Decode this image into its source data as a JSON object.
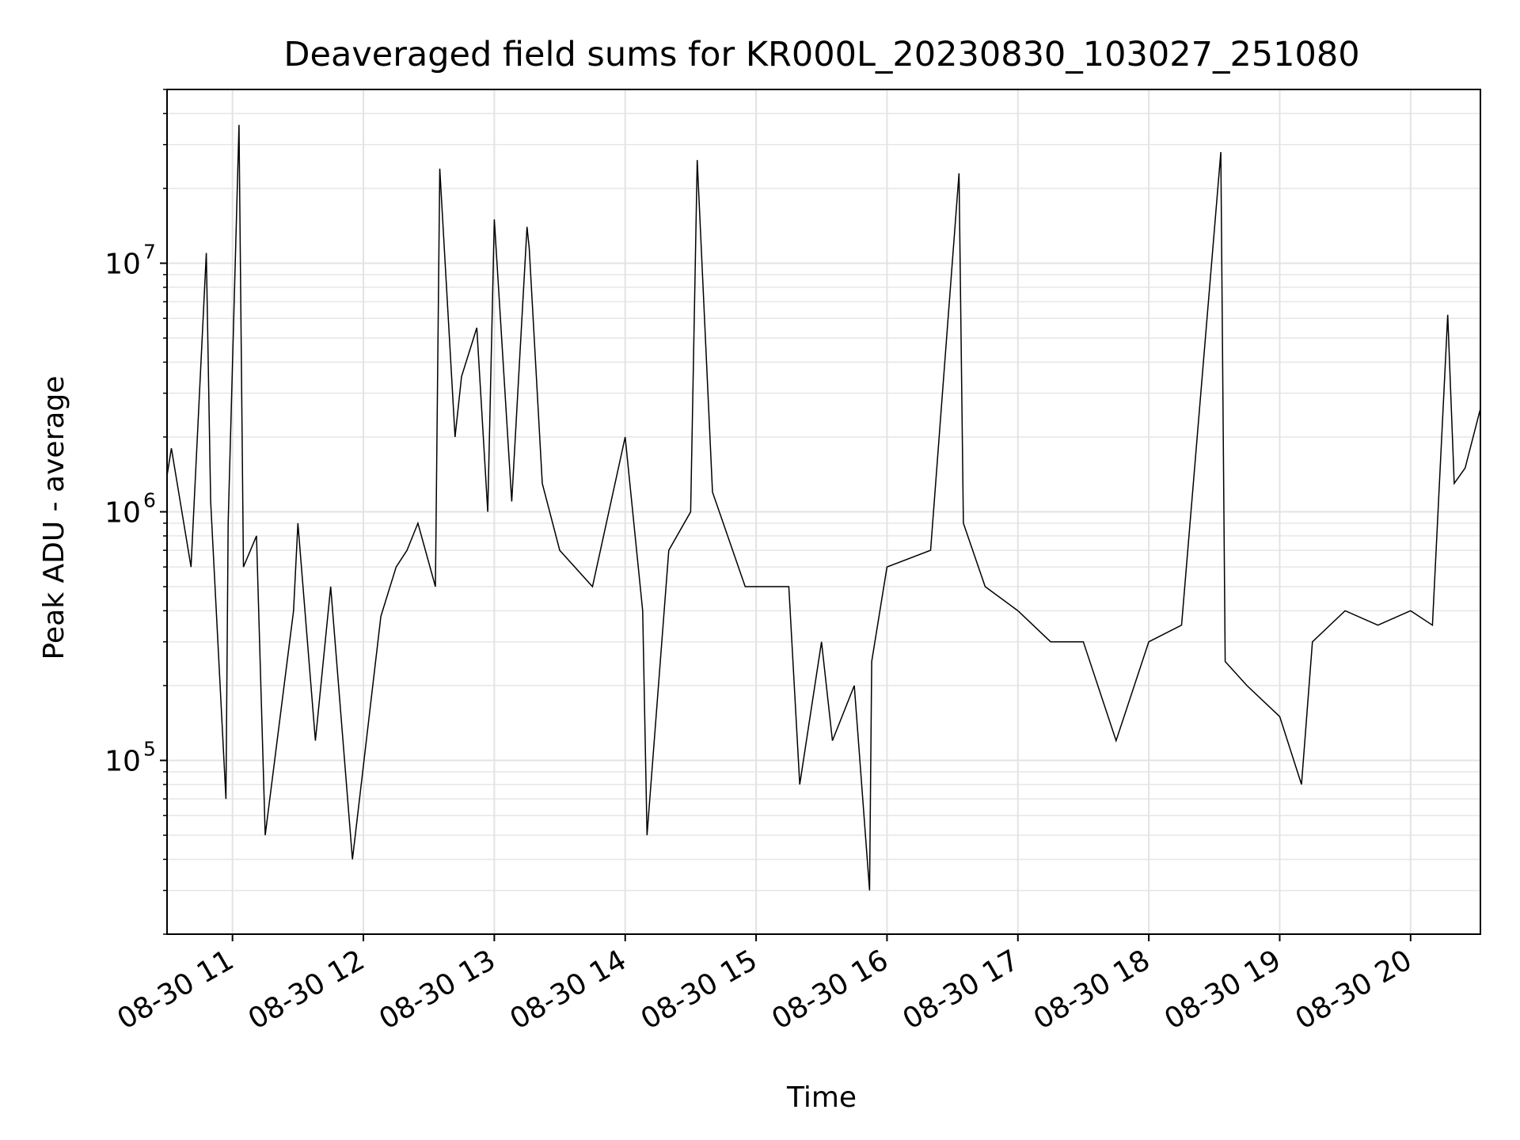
{
  "chart_data": {
    "type": "line",
    "title": "Deaveraged field sums for KR000L_20230830_103027_251080",
    "xlabel": "Time",
    "ylabel": "Peak ADU - average",
    "yscale": "log",
    "ylim": [
      20000,
      50000000
    ],
    "xlim": [
      "2023-08-30 10:30",
      "2023-08-30 20:32"
    ],
    "grid": true,
    "legend": "none",
    "line_color": "#000000",
    "x_ticks": [
      {
        "t": "2023-08-30 11:00",
        "label": "08-30 11"
      },
      {
        "t": "2023-08-30 12:00",
        "label": "08-30 12"
      },
      {
        "t": "2023-08-30 13:00",
        "label": "08-30 13"
      },
      {
        "t": "2023-08-30 14:00",
        "label": "08-30 14"
      },
      {
        "t": "2023-08-30 15:00",
        "label": "08-30 15"
      },
      {
        "t": "2023-08-30 16:00",
        "label": "08-30 16"
      },
      {
        "t": "2023-08-30 17:00",
        "label": "08-30 17"
      },
      {
        "t": "2023-08-30 18:00",
        "label": "08-30 18"
      },
      {
        "t": "2023-08-30 19:00",
        "label": "08-30 19"
      },
      {
        "t": "2023-08-30 20:00",
        "label": "08-30 20"
      }
    ],
    "y_ticks": [
      {
        "value": 100000,
        "base": "10",
        "exp": "5"
      },
      {
        "value": 1000000,
        "base": "10",
        "exp": "6"
      },
      {
        "value": 10000000,
        "base": "10",
        "exp": "7"
      }
    ],
    "series": [
      {
        "x": [
          "2023-08-30 10:30",
          "2023-08-30 10:32",
          "2023-08-30 10:41",
          "2023-08-30 10:48",
          "2023-08-30 10:50",
          "2023-08-30 10:57",
          "2023-08-30 10:58",
          "2023-08-30 11:03",
          "2023-08-30 11:05",
          "2023-08-30 11:11",
          "2023-08-30 11:15",
          "2023-08-30 11:28",
          "2023-08-30 11:30",
          "2023-08-30 11:38",
          "2023-08-30 11:45",
          "2023-08-30 11:55",
          "2023-08-30 12:08",
          "2023-08-30 12:15",
          "2023-08-30 12:20",
          "2023-08-30 12:25",
          "2023-08-30 12:33",
          "2023-08-30 12:35",
          "2023-08-30 12:42",
          "2023-08-30 12:45",
          "2023-08-30 12:52",
          "2023-08-30 12:57",
          "2023-08-30 13:00",
          "2023-08-30 13:08",
          "2023-08-30 13:15",
          "2023-08-30 13:16",
          "2023-08-30 13:22",
          "2023-08-30 13:30",
          "2023-08-30 13:45",
          "2023-08-30 14:00",
          "2023-08-30 14:08",
          "2023-08-30 14:10",
          "2023-08-30 14:20",
          "2023-08-30 14:30",
          "2023-08-30 14:33",
          "2023-08-30 14:40",
          "2023-08-30 14:55",
          "2023-08-30 15:15",
          "2023-08-30 15:20",
          "2023-08-30 15:30",
          "2023-08-30 15:35",
          "2023-08-30 15:45",
          "2023-08-30 15:52",
          "2023-08-30 15:53",
          "2023-08-30 16:00",
          "2023-08-30 16:20",
          "2023-08-30 16:33",
          "2023-08-30 16:35",
          "2023-08-30 16:45",
          "2023-08-30 17:00",
          "2023-08-30 17:15",
          "2023-08-30 17:30",
          "2023-08-30 17:45",
          "2023-08-30 18:00",
          "2023-08-30 18:15",
          "2023-08-30 18:33",
          "2023-08-30 18:35",
          "2023-08-30 18:45",
          "2023-08-30 19:00",
          "2023-08-30 19:10",
          "2023-08-30 19:15",
          "2023-08-30 19:30",
          "2023-08-30 19:45",
          "2023-08-30 20:00",
          "2023-08-30 20:10",
          "2023-08-30 20:17",
          "2023-08-30 20:20",
          "2023-08-30 20:25",
          "2023-08-30 20:32"
        ],
        "y": [
          1400000,
          1800000,
          600000,
          11000000,
          1100000,
          70000,
          900000,
          36000000,
          600000,
          800000,
          50000,
          400000,
          900000,
          120000,
          500000,
          40000,
          380000,
          600000,
          700000,
          900000,
          500000,
          24000000,
          2000000,
          3500000,
          5500000,
          1000000,
          15000000,
          1100000,
          14000000,
          11500000,
          1300000,
          700000,
          500000,
          2000000,
          400000,
          50000,
          700000,
          1000000,
          26000000,
          1200000,
          500000,
          500000,
          80000,
          300000,
          120000,
          200000,
          30000,
          250000,
          600000,
          700000,
          23000000,
          900000,
          500000,
          400000,
          300000,
          300000,
          120000,
          300000,
          350000,
          28000000,
          250000,
          200000,
          150000,
          80000,
          300000,
          400000,
          350000,
          400000,
          350000,
          6200000,
          1300000,
          1500000,
          2600000
        ]
      }
    ]
  }
}
